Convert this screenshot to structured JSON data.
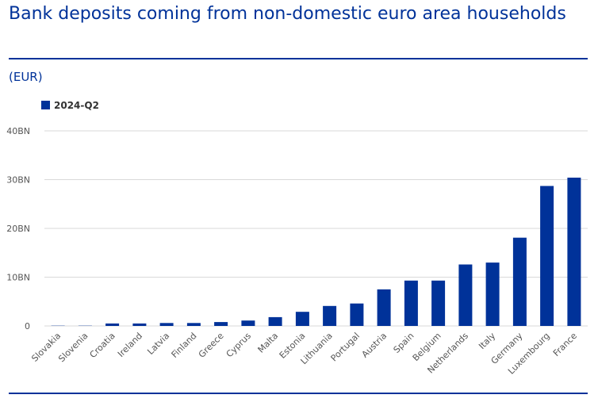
{
  "title": "Bank deposits coming from non-domestic euro area households",
  "unit_label": "(EUR)",
  "colors": {
    "bar": "#003299",
    "rule": "#003299",
    "grid": "#d9d9d9",
    "title": "#003299"
  },
  "chart_data": {
    "type": "bar",
    "categories": [
      "Slovakia",
      "Slovenia",
      "Croatia",
      "Ireland",
      "Latvia",
      "Finland",
      "Greece",
      "Cyprus",
      "Malta",
      "Estonia",
      "Lithuania",
      "Portugal",
      "Austria",
      "Spain",
      "Belgium",
      "Netherlands",
      "Italy",
      "Germany",
      "Luxembourg",
      "France"
    ],
    "series": [
      {
        "name": "2024-Q2",
        "values": [
          0.05,
          0.05,
          0.5,
          0.5,
          0.6,
          0.6,
          0.8,
          1.1,
          1.8,
          2.9,
          4.1,
          4.6,
          7.5,
          9.3,
          9.3,
          12.6,
          13.0,
          18.1,
          28.7,
          30.4
        ]
      }
    ],
    "y_ticks": [
      "0",
      "10BN",
      "20BN",
      "30BN",
      "40BN"
    ],
    "y_tick_values": [
      0,
      10,
      20,
      30,
      40
    ],
    "ylim": [
      0,
      40
    ],
    "y_unit": "BN",
    "grid": true,
    "legend": "top-left"
  }
}
